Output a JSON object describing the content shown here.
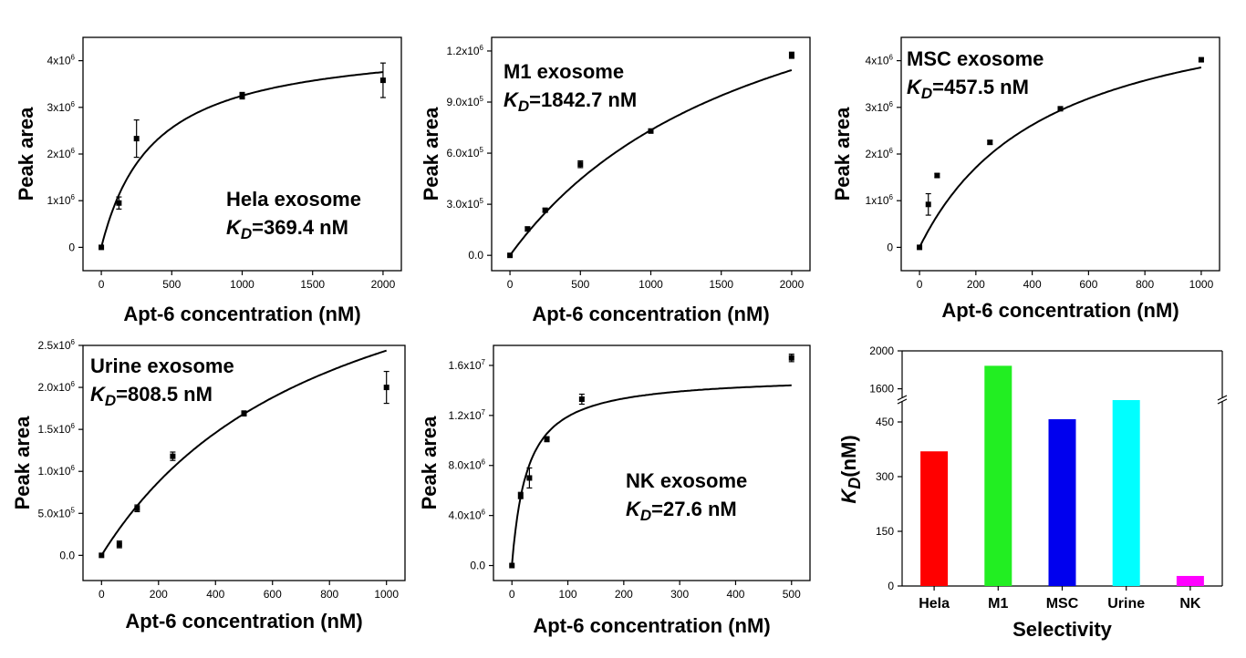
{
  "chart_data": [
    {
      "type": "scatter",
      "annotation_name": "Hela exosome",
      "annotation_kd": "=369.4 nM",
      "xlabel": "Apt-6 concentration (nM)",
      "ylabel": "Peak area",
      "xlim": [
        -130,
        2130
      ],
      "ylim": [
        -500000,
        4500000
      ],
      "xticks": [
        0,
        500,
        1000,
        1500,
        2000
      ],
      "yticks": [
        0,
        1000000,
        2000000,
        3000000,
        4000000
      ],
      "yticklabels": [
        [
          "0",
          ""
        ],
        [
          "1x10",
          "6"
        ],
        [
          "2x10",
          "6"
        ],
        [
          "3x10",
          "6"
        ],
        [
          "4x10",
          "6"
        ]
      ],
      "points": [
        {
          "x": 0,
          "y": 0,
          "err": 0
        },
        {
          "x": 125,
          "y": 950000,
          "err": 130000
        },
        {
          "x": 250,
          "y": 2330000,
          "err": 400000
        },
        {
          "x": 1000,
          "y": 3250000,
          "err": 70000
        },
        {
          "x": 2000,
          "y": 3580000,
          "err": 370000
        }
      ],
      "fit": {
        "bmax": 4450000,
        "kd": 369.4
      }
    },
    {
      "type": "scatter",
      "annotation_name": "M1 exosome",
      "annotation_kd": "=1842.7 nM",
      "xlabel": "Apt-6 concentration (nM)",
      "ylabel": "Peak area",
      "xlim": [
        -130,
        2130
      ],
      "ylim": [
        -90000,
        1280000
      ],
      "xticks": [
        0,
        500,
        1000,
        1500,
        2000
      ],
      "yticks": [
        0,
        300000,
        600000,
        900000,
        1200000
      ],
      "yticklabels": [
        [
          "0.0",
          ""
        ],
        [
          "3.0x10",
          "5"
        ],
        [
          "6.0x10",
          "5"
        ],
        [
          "9.0x10",
          "5"
        ],
        [
          "1.2x10",
          "6"
        ]
      ],
      "points": [
        {
          "x": 0,
          "y": 0,
          "err": 0
        },
        {
          "x": 125,
          "y": 155000,
          "err": 12000
        },
        {
          "x": 250,
          "y": 265000,
          "err": 10000
        },
        {
          "x": 500,
          "y": 535000,
          "err": 20000
        },
        {
          "x": 1000,
          "y": 730000,
          "err": 12000
        },
        {
          "x": 2000,
          "y": 1175000,
          "err": 18000
        }
      ],
      "fit": {
        "bmax": 2090000,
        "kd": 1842.7
      }
    },
    {
      "type": "scatter",
      "annotation_name": "MSC exosome",
      "annotation_kd": "=457.5 nM",
      "xlabel": "Apt-6 concentration (nM)",
      "ylabel": "Peak area",
      "xlim": [
        -65,
        1065
      ],
      "ylim": [
        -500000,
        4500000
      ],
      "xticks": [
        0,
        200,
        400,
        600,
        800,
        1000
      ],
      "yticks": [
        0,
        1000000,
        2000000,
        3000000,
        4000000
      ],
      "yticklabels": [
        [
          "0",
          ""
        ],
        [
          "1x10",
          "6"
        ],
        [
          "2x10",
          "6"
        ],
        [
          "3x10",
          "6"
        ],
        [
          "4x10",
          "6"
        ]
      ],
      "points": [
        {
          "x": 0,
          "y": 0,
          "err": 0
        },
        {
          "x": 31.25,
          "y": 920000,
          "err": 230000
        },
        {
          "x": 62.5,
          "y": 1540000,
          "err": 40000
        },
        {
          "x": 250,
          "y": 2250000,
          "err": 40000
        },
        {
          "x": 500,
          "y": 2970000,
          "err": 40000
        },
        {
          "x": 1000,
          "y": 4020000,
          "err": 40000
        }
      ],
      "fit": {
        "bmax": 5620000,
        "kd": 457.5
      }
    },
    {
      "type": "scatter",
      "annotation_name": "Urine exosome",
      "annotation_kd": "=808.5 nM",
      "xlabel": "Apt-6 concentration (nM)",
      "ylabel": "Peak area",
      "xlim": [
        -65,
        1065
      ],
      "ylim": [
        -300000,
        2500000
      ],
      "xticks": [
        0,
        200,
        400,
        600,
        800,
        1000
      ],
      "yticks": [
        0,
        500000,
        1000000,
        1500000,
        2000000,
        2500000
      ],
      "yticklabels": [
        [
          "0.0",
          ""
        ],
        [
          "5.0x10",
          "5"
        ],
        [
          "1.0x10",
          "6"
        ],
        [
          "1.5x10",
          "6"
        ],
        [
          "2.0x10",
          "6"
        ],
        [
          "2.5x10",
          "6"
        ]
      ],
      "points": [
        {
          "x": 0,
          "y": 0,
          "err": 0
        },
        {
          "x": 62.5,
          "y": 130000,
          "err": 40000
        },
        {
          "x": 125,
          "y": 560000,
          "err": 40000
        },
        {
          "x": 250,
          "y": 1180000,
          "err": 50000
        },
        {
          "x": 500,
          "y": 1690000,
          "err": 30000
        },
        {
          "x": 1000,
          "y": 2000000,
          "err": 190000
        }
      ],
      "fit": {
        "bmax": 4410000,
        "kd": 808.5
      }
    },
    {
      "type": "scatter",
      "annotation_name": "NK exosome",
      "annotation_kd": "=27.6 nM",
      "xlabel": "Apt-6 concentration (nM)",
      "ylabel": "Peak area",
      "xlim": [
        -33,
        533
      ],
      "ylim": [
        -1200000,
        17600000
      ],
      "xticks": [
        0,
        100,
        200,
        300,
        400,
        500
      ],
      "yticks": [
        0,
        4000000,
        8000000,
        12000000,
        16000000
      ],
      "yticklabels": [
        [
          "0.0",
          ""
        ],
        [
          "4.0x10",
          "6"
        ],
        [
          "8.0x10",
          "6"
        ],
        [
          "1.2x10",
          "7"
        ],
        [
          "1.6x10",
          "7"
        ]
      ],
      "points": [
        {
          "x": 0,
          "y": 0,
          "err": 0
        },
        {
          "x": 15.6,
          "y": 5600000,
          "err": 250000
        },
        {
          "x": 31.25,
          "y": 7000000,
          "err": 800000
        },
        {
          "x": 62.5,
          "y": 10100000,
          "err": 200000
        },
        {
          "x": 125,
          "y": 13300000,
          "err": 400000
        },
        {
          "x": 500,
          "y": 16600000,
          "err": 300000
        }
      ],
      "fit": {
        "bmax": 15200000,
        "kd": 27.6
      }
    },
    {
      "type": "bar",
      "xlabel": "Selectivity",
      "ylabel": "K",
      "ylabel_sub": "D",
      "ylabel_unit": "(nM)",
      "categories": [
        "Hela",
        "M1",
        "MSC",
        "Urine",
        "NK"
      ],
      "values": [
        369.4,
        1842.7,
        457.5,
        808.5,
        27.6
      ],
      "colors": [
        "#ff0000",
        "#22ee22",
        "#0000ee",
        "#00ffff",
        "#ff00ff"
      ],
      "broken_axis": true,
      "lower_range": [
        0,
        500
      ],
      "upper_range": [
        1500,
        2000
      ],
      "lower_ticks": [
        0,
        150,
        300,
        450
      ],
      "upper_ticks": [
        1600,
        2000
      ]
    }
  ]
}
